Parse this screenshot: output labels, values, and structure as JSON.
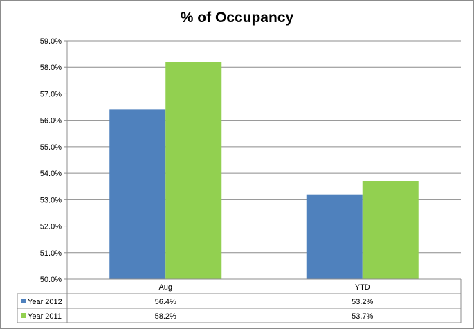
{
  "chart_data": {
    "type": "bar",
    "title": "% of Occupancy",
    "categories": [
      "Aug",
      "YTD"
    ],
    "series": [
      {
        "name": "Year 2012",
        "values": [
          56.4,
          53.2
        ],
        "labels": [
          "56.4%",
          "53.2%"
        ],
        "color": "#4F81BD"
      },
      {
        "name": "Year 2011",
        "values": [
          58.2,
          53.7
        ],
        "labels": [
          "58.2%",
          "53.7%"
        ],
        "color": "#92D050"
      }
    ],
    "ylim": [
      50.0,
      59.0
    ],
    "y_ticks": [
      "50.0%",
      "51.0%",
      "52.0%",
      "53.0%",
      "54.0%",
      "55.0%",
      "56.0%",
      "57.0%",
      "58.0%",
      "59.0%"
    ],
    "grid": true,
    "legend": "data-table-below"
  }
}
